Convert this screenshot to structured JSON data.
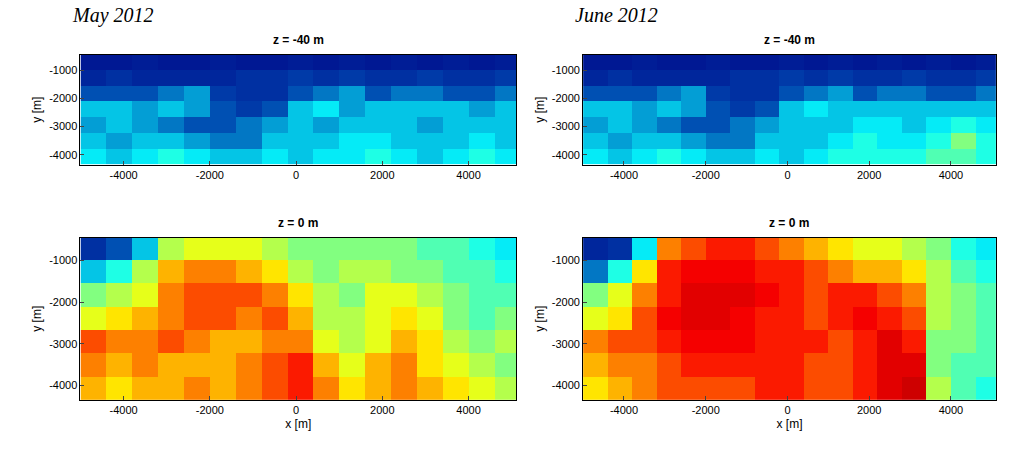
{
  "chart_data": [
    {
      "type": "heatmap",
      "subtitle": "May 2012",
      "title": "z = -40 m",
      "y_label": "y [m]",
      "xlim": [
        -5000,
        5100
      ],
      "xticks": [
        -4000,
        -2000,
        0,
        2000,
        4000
      ],
      "ylim": [
        -4350,
        -450
      ],
      "yticks": [
        -4000,
        -3000,
        -2000,
        -1000
      ],
      "zlim": [
        0,
        1
      ],
      "x": [
        -4700,
        -4100,
        -3500,
        -2900,
        -2300,
        -1700,
        -1100,
        -500,
        100,
        700,
        1300,
        1900,
        2500,
        3100,
        3700,
        4300,
        4900
      ],
      "y": [
        -4070,
        -3510,
        -2950,
        -2390,
        -1830,
        -1270,
        -710
      ],
      "cells": [
        [
          0.35,
          0.3,
          0.35,
          0.4,
          0.35,
          0.3,
          0.3,
          0.35,
          0.3,
          0.35,
          0.35,
          0.4,
          0.35,
          0.3,
          0.35,
          0.4,
          0.35
        ],
        [
          0.3,
          0.25,
          0.3,
          0.3,
          0.25,
          0.2,
          0.2,
          0.3,
          0.3,
          0.3,
          0.35,
          0.35,
          0.3,
          0.3,
          0.3,
          0.35,
          0.3
        ],
        [
          0.25,
          0.3,
          0.25,
          0.2,
          0.15,
          0.15,
          0.2,
          0.25,
          0.3,
          0.25,
          0.3,
          0.3,
          0.3,
          0.25,
          0.3,
          0.3,
          0.3
        ],
        [
          0.3,
          0.3,
          0.25,
          0.3,
          0.25,
          0.15,
          0.12,
          0.15,
          0.3,
          0.35,
          0.25,
          0.3,
          0.3,
          0.3,
          0.3,
          0.25,
          0.3
        ],
        [
          0.15,
          0.15,
          0.15,
          0.2,
          0.25,
          0.12,
          0.1,
          0.1,
          0.15,
          0.2,
          0.25,
          0.15,
          0.2,
          0.2,
          0.15,
          0.15,
          0.2
        ],
        [
          0.08,
          0.1,
          0.08,
          0.08,
          0.08,
          0.08,
          0.1,
          0.1,
          0.12,
          0.1,
          0.12,
          0.1,
          0.1,
          0.12,
          0.1,
          0.1,
          0.12
        ],
        [
          0.05,
          0.05,
          0.06,
          0.05,
          0.05,
          0.06,
          0.05,
          0.05,
          0.06,
          0.05,
          0.06,
          0.05,
          0.06,
          0.05,
          0.06,
          0.05,
          0.06
        ]
      ]
    },
    {
      "type": "heatmap",
      "subtitle": "June 2012",
      "title": "z = -40 m",
      "y_label": "y [m]",
      "xlim": [
        -5000,
        5100
      ],
      "xticks": [
        -4000,
        -2000,
        0,
        2000,
        4000
      ],
      "ylim": [
        -4350,
        -450
      ],
      "yticks": [
        -4000,
        -3000,
        -2000,
        -1000
      ],
      "zlim": [
        0,
        1
      ],
      "x": [
        -4700,
        -4100,
        -3500,
        -2900,
        -2300,
        -1700,
        -1100,
        -500,
        100,
        700,
        1300,
        1900,
        2500,
        3100,
        3700,
        4300,
        4900
      ],
      "y": [
        -4070,
        -3510,
        -2950,
        -2390,
        -1830,
        -1270,
        -710
      ],
      "cells": [
        [
          0.35,
          0.3,
          0.35,
          0.4,
          0.35,
          0.3,
          0.3,
          0.35,
          0.3,
          0.35,
          0.4,
          0.4,
          0.4,
          0.4,
          0.45,
          0.45,
          0.4
        ],
        [
          0.3,
          0.25,
          0.3,
          0.3,
          0.25,
          0.2,
          0.2,
          0.3,
          0.3,
          0.3,
          0.35,
          0.4,
          0.35,
          0.35,
          0.4,
          0.5,
          0.4
        ],
        [
          0.25,
          0.3,
          0.25,
          0.2,
          0.15,
          0.15,
          0.2,
          0.25,
          0.3,
          0.3,
          0.3,
          0.35,
          0.35,
          0.3,
          0.35,
          0.4,
          0.35
        ],
        [
          0.3,
          0.3,
          0.25,
          0.3,
          0.25,
          0.15,
          0.12,
          0.15,
          0.3,
          0.35,
          0.3,
          0.3,
          0.3,
          0.3,
          0.3,
          0.3,
          0.3
        ],
        [
          0.15,
          0.15,
          0.15,
          0.2,
          0.25,
          0.12,
          0.1,
          0.1,
          0.15,
          0.2,
          0.25,
          0.15,
          0.2,
          0.2,
          0.15,
          0.15,
          0.2
        ],
        [
          0.08,
          0.1,
          0.08,
          0.08,
          0.08,
          0.08,
          0.1,
          0.1,
          0.12,
          0.1,
          0.12,
          0.1,
          0.1,
          0.12,
          0.1,
          0.1,
          0.12
        ],
        [
          0.05,
          0.05,
          0.06,
          0.05,
          0.05,
          0.06,
          0.05,
          0.05,
          0.06,
          0.05,
          0.06,
          0.05,
          0.06,
          0.05,
          0.06,
          0.05,
          0.06
        ]
      ]
    },
    {
      "type": "heatmap",
      "title": "z = 0 m",
      "x_label": "x [m]",
      "y_label": "y [m]",
      "xlim": [
        -5000,
        5100
      ],
      "xticks": [
        -4000,
        -2000,
        0,
        2000,
        4000
      ],
      "ylim": [
        -4350,
        -450
      ],
      "yticks": [
        -4000,
        -3000,
        -2000,
        -1000
      ],
      "zlim": [
        0,
        1
      ],
      "x": [
        -4700,
        -4100,
        -3500,
        -2900,
        -2300,
        -1700,
        -1100,
        -500,
        100,
        700,
        1300,
        1900,
        2500,
        3100,
        3700,
        4300,
        4900
      ],
      "y": [
        -4070,
        -3510,
        -2950,
        -2390,
        -1830,
        -1270,
        -710
      ],
      "cells": [
        [
          0.7,
          0.65,
          0.7,
          0.7,
          0.75,
          0.7,
          0.75,
          0.8,
          0.85,
          0.75,
          0.65,
          0.7,
          0.75,
          0.7,
          0.65,
          0.6,
          0.55
        ],
        [
          0.75,
          0.7,
          0.75,
          0.7,
          0.7,
          0.7,
          0.75,
          0.8,
          0.85,
          0.7,
          0.6,
          0.7,
          0.75,
          0.65,
          0.6,
          0.55,
          0.5
        ],
        [
          0.8,
          0.75,
          0.75,
          0.8,
          0.75,
          0.7,
          0.7,
          0.75,
          0.75,
          0.6,
          0.55,
          0.6,
          0.7,
          0.65,
          0.55,
          0.5,
          0.55
        ],
        [
          0.6,
          0.65,
          0.7,
          0.75,
          0.8,
          0.8,
          0.75,
          0.8,
          0.7,
          0.55,
          0.55,
          0.6,
          0.65,
          0.6,
          0.5,
          0.45,
          0.5
        ],
        [
          0.5,
          0.55,
          0.6,
          0.75,
          0.8,
          0.8,
          0.8,
          0.75,
          0.65,
          0.55,
          0.5,
          0.6,
          0.6,
          0.55,
          0.5,
          0.45,
          0.45
        ],
        [
          0.3,
          0.4,
          0.55,
          0.7,
          0.75,
          0.75,
          0.7,
          0.65,
          0.55,
          0.5,
          0.55,
          0.55,
          0.5,
          0.5,
          0.45,
          0.45,
          0.4
        ],
        [
          0.1,
          0.15,
          0.3,
          0.55,
          0.6,
          0.6,
          0.6,
          0.55,
          0.5,
          0.5,
          0.5,
          0.5,
          0.5,
          0.45,
          0.45,
          0.4,
          0.35
        ]
      ]
    },
    {
      "type": "heatmap",
      "title": "z = 0 m",
      "x_label": "x [m]",
      "y_label": "y [m]",
      "xlim": [
        -5000,
        5100
      ],
      "xticks": [
        -4000,
        -2000,
        0,
        2000,
        4000
      ],
      "ylim": [
        -4350,
        -450
      ],
      "yticks": [
        -4000,
        -3000,
        -2000,
        -1000
      ],
      "zlim": [
        0,
        1
      ],
      "x": [
        -4700,
        -4100,
        -3500,
        -2900,
        -2300,
        -1700,
        -1100,
        -500,
        100,
        700,
        1300,
        1900,
        2500,
        3100,
        3700,
        4300,
        4900
      ],
      "y": [
        -4070,
        -3510,
        -2950,
        -2390,
        -1830,
        -1270,
        -710
      ],
      "cells": [
        [
          0.65,
          0.7,
          0.75,
          0.8,
          0.8,
          0.8,
          0.8,
          0.85,
          0.85,
          0.8,
          0.8,
          0.85,
          0.9,
          0.92,
          0.55,
          0.45,
          0.4
        ],
        [
          0.7,
          0.75,
          0.75,
          0.8,
          0.85,
          0.85,
          0.85,
          0.85,
          0.85,
          0.8,
          0.8,
          0.85,
          0.9,
          0.9,
          0.5,
          0.45,
          0.45
        ],
        [
          0.75,
          0.8,
          0.8,
          0.85,
          0.88,
          0.88,
          0.88,
          0.85,
          0.85,
          0.85,
          0.8,
          0.85,
          0.9,
          0.85,
          0.5,
          0.5,
          0.45
        ],
        [
          0.6,
          0.65,
          0.8,
          0.88,
          0.9,
          0.9,
          0.88,
          0.85,
          0.85,
          0.8,
          0.85,
          0.88,
          0.85,
          0.8,
          0.55,
          0.5,
          0.45
        ],
        [
          0.5,
          0.6,
          0.75,
          0.85,
          0.9,
          0.9,
          0.9,
          0.88,
          0.85,
          0.8,
          0.85,
          0.85,
          0.8,
          0.75,
          0.55,
          0.5,
          0.45
        ],
        [
          0.2,
          0.4,
          0.65,
          0.85,
          0.88,
          0.88,
          0.88,
          0.85,
          0.85,
          0.8,
          0.75,
          0.7,
          0.7,
          0.65,
          0.55,
          0.45,
          0.4
        ],
        [
          0.08,
          0.1,
          0.35,
          0.75,
          0.8,
          0.85,
          0.85,
          0.8,
          0.75,
          0.7,
          0.65,
          0.6,
          0.6,
          0.55,
          0.5,
          0.4,
          0.35
        ]
      ]
    }
  ]
}
